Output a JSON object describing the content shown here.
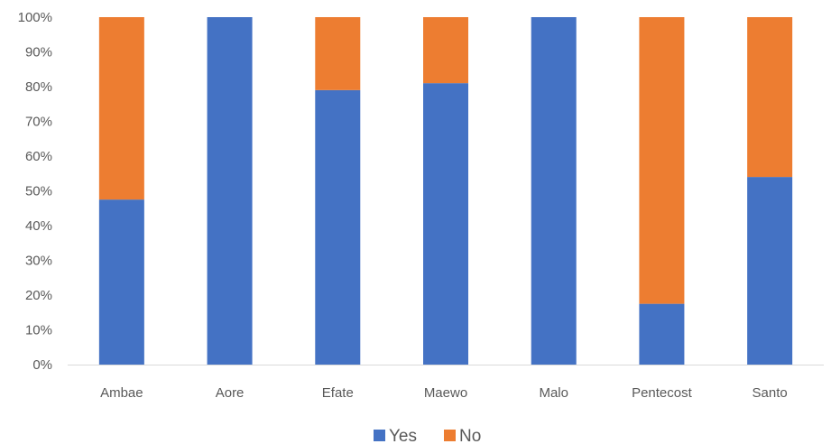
{
  "chart_data": {
    "type": "bar",
    "stacked": true,
    "stack_mode": "percent",
    "title": "",
    "xlabel": "",
    "ylabel": "",
    "categories": [
      "Ambae",
      "Aore",
      "Efate",
      "Maewo",
      "Malo",
      "Pentecost",
      "Santo"
    ],
    "series": [
      {
        "name": "Yes",
        "color": "#4472C4",
        "values": [
          47.5,
          100,
          79,
          81,
          100,
          17.5,
          54
        ]
      },
      {
        "name": "No",
        "color": "#ED7D31",
        "values": [
          52.5,
          0,
          21,
          19,
          0,
          82.5,
          46
        ]
      }
    ],
    "ylim": [
      0,
      100
    ],
    "yticks": [
      "0%",
      "10%",
      "20%",
      "30%",
      "40%",
      "50%",
      "60%",
      "70%",
      "80%",
      "90%",
      "100%"
    ],
    "grid": false,
    "legend_position": "bottom"
  }
}
